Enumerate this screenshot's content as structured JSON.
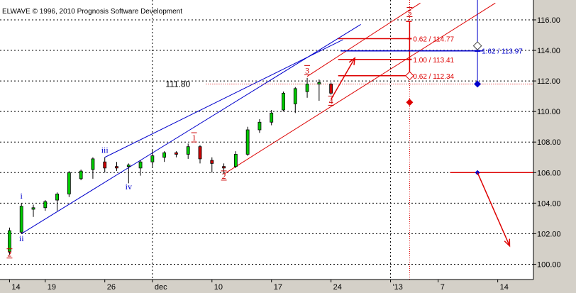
{
  "window": {
    "copyright": "ELWAVE © 1996, 2010 Prognosis Software Development"
  },
  "chart_data": {
    "type": "candlestick",
    "title": "",
    "xlabel": "",
    "ylabel": "",
    "ylim": [
      99.0,
      117.3
    ],
    "ytick_values": [
      100,
      102,
      104,
      106,
      108,
      110,
      112,
      114,
      116
    ],
    "ytick_labels": [
      "100.00",
      "102.00",
      "104.00",
      "106.00",
      "108.00",
      "110.00",
      "112.00",
      "114.00",
      "116.00"
    ],
    "x_range": [
      -0.8,
      44
    ],
    "xticks": [
      {
        "label": "14",
        "x": 0
      },
      {
        "label": "19",
        "x": 3
      },
      {
        "label": "26",
        "x": 8
      },
      {
        "label": "dec",
        "x": 12
      },
      {
        "label": "10",
        "x": 17
      },
      {
        "label": "17",
        "x": 22
      },
      {
        "label": "24",
        "x": 27
      },
      {
        "label": "'13",
        "x": 32
      },
      {
        "label": "7",
        "x": 36
      },
      {
        "label": "14",
        "x": 41
      }
    ],
    "month_separators": [
      12,
      32
    ],
    "candles": [
      {
        "x": 0,
        "open": 100.8,
        "high": 102.4,
        "low": 100.6,
        "close": 102.2
      },
      {
        "x": 1,
        "open": 102.1,
        "high": 104.0,
        "low": 102.0,
        "close": 103.8
      },
      {
        "x": 2,
        "open": 103.6,
        "high": 103.9,
        "low": 103.1,
        "close": 103.7
      },
      {
        "x": 3,
        "open": 103.7,
        "high": 104.2,
        "low": 103.5,
        "close": 104.1
      },
      {
        "x": 4,
        "open": 104.2,
        "high": 104.7,
        "low": 103.5,
        "close": 104.6
      },
      {
        "x": 5,
        "open": 104.6,
        "high": 106.1,
        "low": 104.4,
        "close": 106.0
      },
      {
        "x": 6,
        "open": 105.6,
        "high": 106.2,
        "low": 105.5,
        "close": 106.1
      },
      {
        "x": 7,
        "open": 106.2,
        "high": 107.0,
        "low": 105.6,
        "close": 106.9
      },
      {
        "x": 8,
        "open": 106.7,
        "high": 107.0,
        "low": 106.0,
        "close": 106.3
      },
      {
        "x": 9,
        "open": 106.4,
        "high": 106.7,
        "low": 106.1,
        "close": 106.3
      },
      {
        "x": 10,
        "open": 106.4,
        "high": 106.6,
        "low": 105.3,
        "close": 106.5
      },
      {
        "x": 11,
        "open": 106.3,
        "high": 106.8,
        "low": 105.8,
        "close": 106.7
      },
      {
        "x": 12,
        "open": 106.7,
        "high": 107.5,
        "low": 106.3,
        "close": 107.1
      },
      {
        "x": 13,
        "open": 107.0,
        "high": 107.4,
        "low": 106.7,
        "close": 107.3
      },
      {
        "x": 14,
        "open": 107.3,
        "high": 107.4,
        "low": 107.0,
        "close": 107.2
      },
      {
        "x": 15,
        "open": 107.2,
        "high": 107.9,
        "low": 106.9,
        "close": 107.7
      },
      {
        "x": 16,
        "open": 107.7,
        "high": 107.8,
        "low": 106.6,
        "close": 106.9
      },
      {
        "x": 17,
        "open": 106.8,
        "high": 107.0,
        "low": 106.0,
        "close": 106.6
      },
      {
        "x": 18,
        "open": 106.4,
        "high": 106.6,
        "low": 105.9,
        "close": 106.3
      },
      {
        "x": 19,
        "open": 106.4,
        "high": 107.4,
        "low": 106.3,
        "close": 107.2
      },
      {
        "x": 20,
        "open": 107.2,
        "high": 109.0,
        "low": 107.1,
        "close": 108.8
      },
      {
        "x": 21,
        "open": 108.8,
        "high": 109.5,
        "low": 108.6,
        "close": 109.3
      },
      {
        "x": 22,
        "open": 109.3,
        "high": 110.1,
        "low": 109.1,
        "close": 109.9
      },
      {
        "x": 23,
        "open": 110.1,
        "high": 111.3,
        "low": 110.0,
        "close": 111.2
      },
      {
        "x": 24,
        "open": 110.5,
        "high": 111.6,
        "low": 109.9,
        "close": 111.5
      },
      {
        "x": 25,
        "open": 111.3,
        "high": 112.2,
        "low": 110.9,
        "close": 111.8
      },
      {
        "x": 26,
        "open": 111.8,
        "high": 112.1,
        "low": 110.7,
        "close": 111.9
      },
      {
        "x": 27,
        "open": 111.8,
        "high": 111.9,
        "low": 111.1,
        "close": 111.2
      }
    ],
    "last_price_line": {
      "value": 111.8,
      "label": "111.80"
    },
    "wave_labels": [
      {
        "text": "2",
        "x": 0,
        "y": 100.5,
        "color": "#cc0000"
      },
      {
        "text": "i",
        "x": 1,
        "y": 104.3,
        "color": "#0000cc"
      },
      {
        "text": "ii",
        "x": 1,
        "y": 101.5,
        "color": "#0000cc"
      },
      {
        "text": "iii",
        "x": 8,
        "y": 107.3,
        "color": "#0000cc"
      },
      {
        "text": "iv",
        "x": 10,
        "y": 104.9,
        "color": "#0000cc"
      },
      {
        "text": "1",
        "x": 15.5,
        "y": 108.1,
        "color": "#cc0000"
      },
      {
        "text": "2",
        "x": 18,
        "y": 105.6,
        "color": "#cc0000"
      },
      {
        "text": "3",
        "x": 25,
        "y": 112.5,
        "color": "#cc0000"
      },
      {
        "text": "4",
        "x": 27,
        "y": 110.5,
        "color": "#cc0000"
      },
      {
        "text": "5",
        "x": 33.6,
        "y": 116.3,
        "color": "#cc0000"
      }
    ],
    "channels": [
      {
        "color": "#0000cc",
        "lines": [
          {
            "x1": 1,
            "y1": 102.0,
            "x2": 29.5,
            "y2": 115.7
          },
          {
            "x1": 8,
            "y1": 107.0,
            "x2": 28,
            "y2": 114.7
          }
        ]
      },
      {
        "color": "#dd0000",
        "lines": [
          {
            "x1": 18,
            "y1": 105.9,
            "x2": 40.8,
            "y2": 117.1
          },
          {
            "x1": 25,
            "y1": 112.3,
            "x2": 34.5,
            "y2": 117.1
          }
        ]
      }
    ],
    "fib_targets": [
      {
        "label": "0.62 / 114.77",
        "value": 114.77
      },
      {
        "label": "1.00 / 113.41",
        "value": 113.41
      },
      {
        "label": "0.62 / 112.34",
        "value": 112.34
      }
    ],
    "fib_bracket": {
      "x": 33.6,
      "from": 112.1,
      "to": 115.9
    },
    "projection_blue": {
      "x": 39.3,
      "label": "1.62 / 113.97",
      "value": 113.97,
      "line_top": 117.3,
      "line_bottom": 111.8,
      "diamond_open": 114.3
    },
    "red_diamond": {
      "x": 33.6,
      "value": 110.6
    },
    "red_arrows": [
      {
        "x1": 27,
        "y1": 110.8,
        "x2": 29,
        "y2": 113.5
      },
      {
        "x1": 39.3,
        "y1": 106.0,
        "x2": 42,
        "y2": 101.2
      }
    ],
    "support_line": {
      "value": 106.0,
      "x_from": 37,
      "x_to": 44
    }
  },
  "colors": {
    "up_candle": "#00cc00",
    "down_candle": "#cc0000",
    "blue": "#0000cc",
    "red": "#dd0000",
    "grid": "#000000"
  }
}
